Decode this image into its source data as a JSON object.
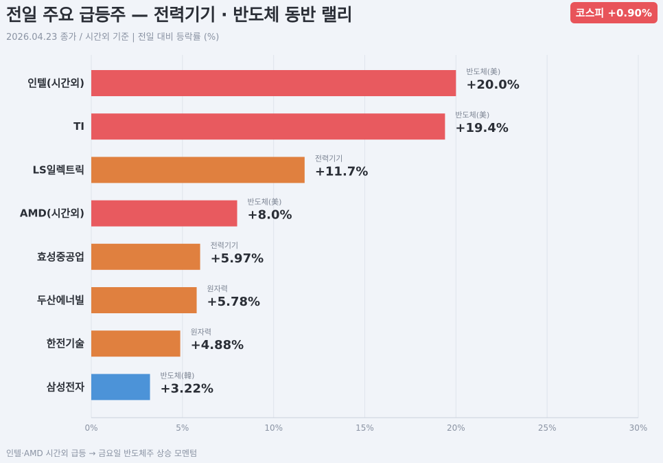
{
  "header": {
    "title": "전일 주요 급등주 — 전력기기 · 반도체 동반 랠리",
    "subtitle": "2026.04.23 종가 / 시간외 기준  |  전일 대비 등락률 (%)",
    "badge": "코스피 +0.90%"
  },
  "footnote": "인텔·AMD 시간외 급등 → 금요일 반도체주 상승 모멘텀",
  "colors": {
    "us_semis": "#e85a5f",
    "power": "#e0803f",
    "kr_semis": "#4c93d8",
    "badge": "#e8545a"
  },
  "chart_data": {
    "type": "bar",
    "orientation": "horizontal",
    "categories": [
      "인텔(시간외)",
      "TI",
      "LS일렉트릭",
      "AMD(시간외)",
      "효성중공업",
      "두산에너빌",
      "한전기술",
      "삼성전자"
    ],
    "values": [
      20.0,
      19.4,
      11.7,
      8.0,
      5.97,
      5.78,
      4.88,
      3.22
    ],
    "value_labels": [
      "+20.0%",
      "+19.4%",
      "+11.7%",
      "+8.0%",
      "+5.97%",
      "+5.78%",
      "+4.88%",
      "+3.22%"
    ],
    "tags": [
      "반도체(美)",
      "반도체(美)",
      "전력기기",
      "반도체(美)",
      "전력기기",
      "원자력",
      "원자력",
      "반도체(韓)"
    ],
    "bar_colors": [
      "#e85a5f",
      "#e85a5f",
      "#e0803f",
      "#e85a5f",
      "#e0803f",
      "#e0803f",
      "#e0803f",
      "#4c93d8"
    ],
    "xlim": [
      0,
      30
    ],
    "xticks": [
      0,
      5,
      10,
      15,
      20,
      25,
      30
    ],
    "xtick_labels": [
      "0%",
      "5%",
      "10%",
      "15%",
      "20%",
      "25%",
      "30%"
    ],
    "grid": true
  }
}
